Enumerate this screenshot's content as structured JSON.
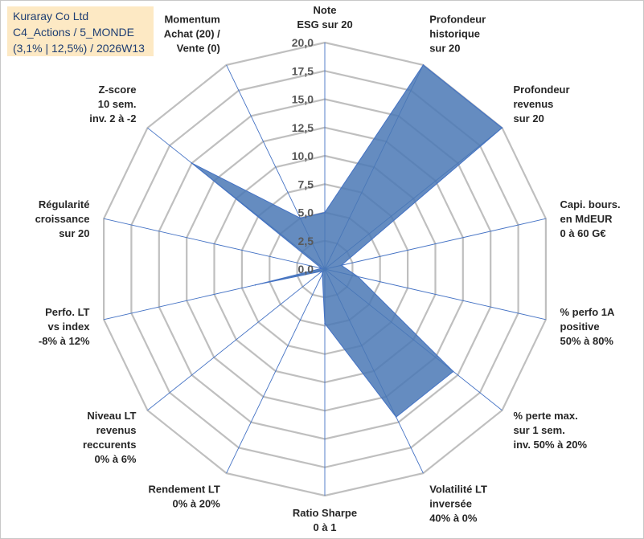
{
  "title_box": {
    "line1": "Kuraray Co Ltd",
    "line2": "C4_Actions / 5_MONDE",
    "line3": "(3,1% | 12,5%) / 2026W13"
  },
  "colors": {
    "fill": "#4a78b5",
    "grid": "#bfbfbf",
    "spoke": "#4472c4",
    "text": "#262626",
    "title_bg": "#fde9c4",
    "title_text": "#1f3e73"
  },
  "chart_data": {
    "type": "radar",
    "r_range": [
      0,
      20
    ],
    "r_ticks": [
      "0,0",
      "2,5",
      "5,0",
      "7,5",
      "10,0",
      "12,5",
      "15,0",
      "17,5",
      "20,0"
    ],
    "categories": [
      [
        "Note",
        "ESG sur 20"
      ],
      [
        "Profondeur",
        "historique",
        "sur 20"
      ],
      [
        "Profondeur",
        "revenus",
        "sur 20"
      ],
      [
        "Capi. bours.",
        "en MdEUR",
        "0 à 60 G€"
      ],
      [
        "% perfo 1A",
        "positive",
        "50% à 80%"
      ],
      [
        "% perte max.",
        "sur 1 sem.",
        "inv. 50% à 20%"
      ],
      [
        "Volatilité LT",
        "inversée",
        "40% à 0%"
      ],
      [
        "Ratio Sharpe",
        "0 à 1"
      ],
      [
        "Rendement LT",
        "0% à 20%"
      ],
      [
        "Niveau LT",
        "revenus",
        "reccurents",
        "0% à 6%"
      ],
      [
        "Perfo. LT",
        "vs index",
        "-8% à 12%"
      ],
      [
        "Régularité",
        "croissance",
        "sur 20"
      ],
      [
        "Z-score",
        "10 sem.",
        "inv. 2 à -2"
      ],
      [
        "Momentum",
        "Achat (20) /",
        "Vente (0)"
      ]
    ],
    "series": [
      {
        "name": "Kuraray Co Ltd",
        "values": [
          5.0,
          20.0,
          20.0,
          1.5,
          3.0,
          14.5,
          14.5,
          4.8,
          0.5,
          0.3,
          6.3,
          0.3,
          15.0,
          5.0
        ]
      }
    ]
  }
}
